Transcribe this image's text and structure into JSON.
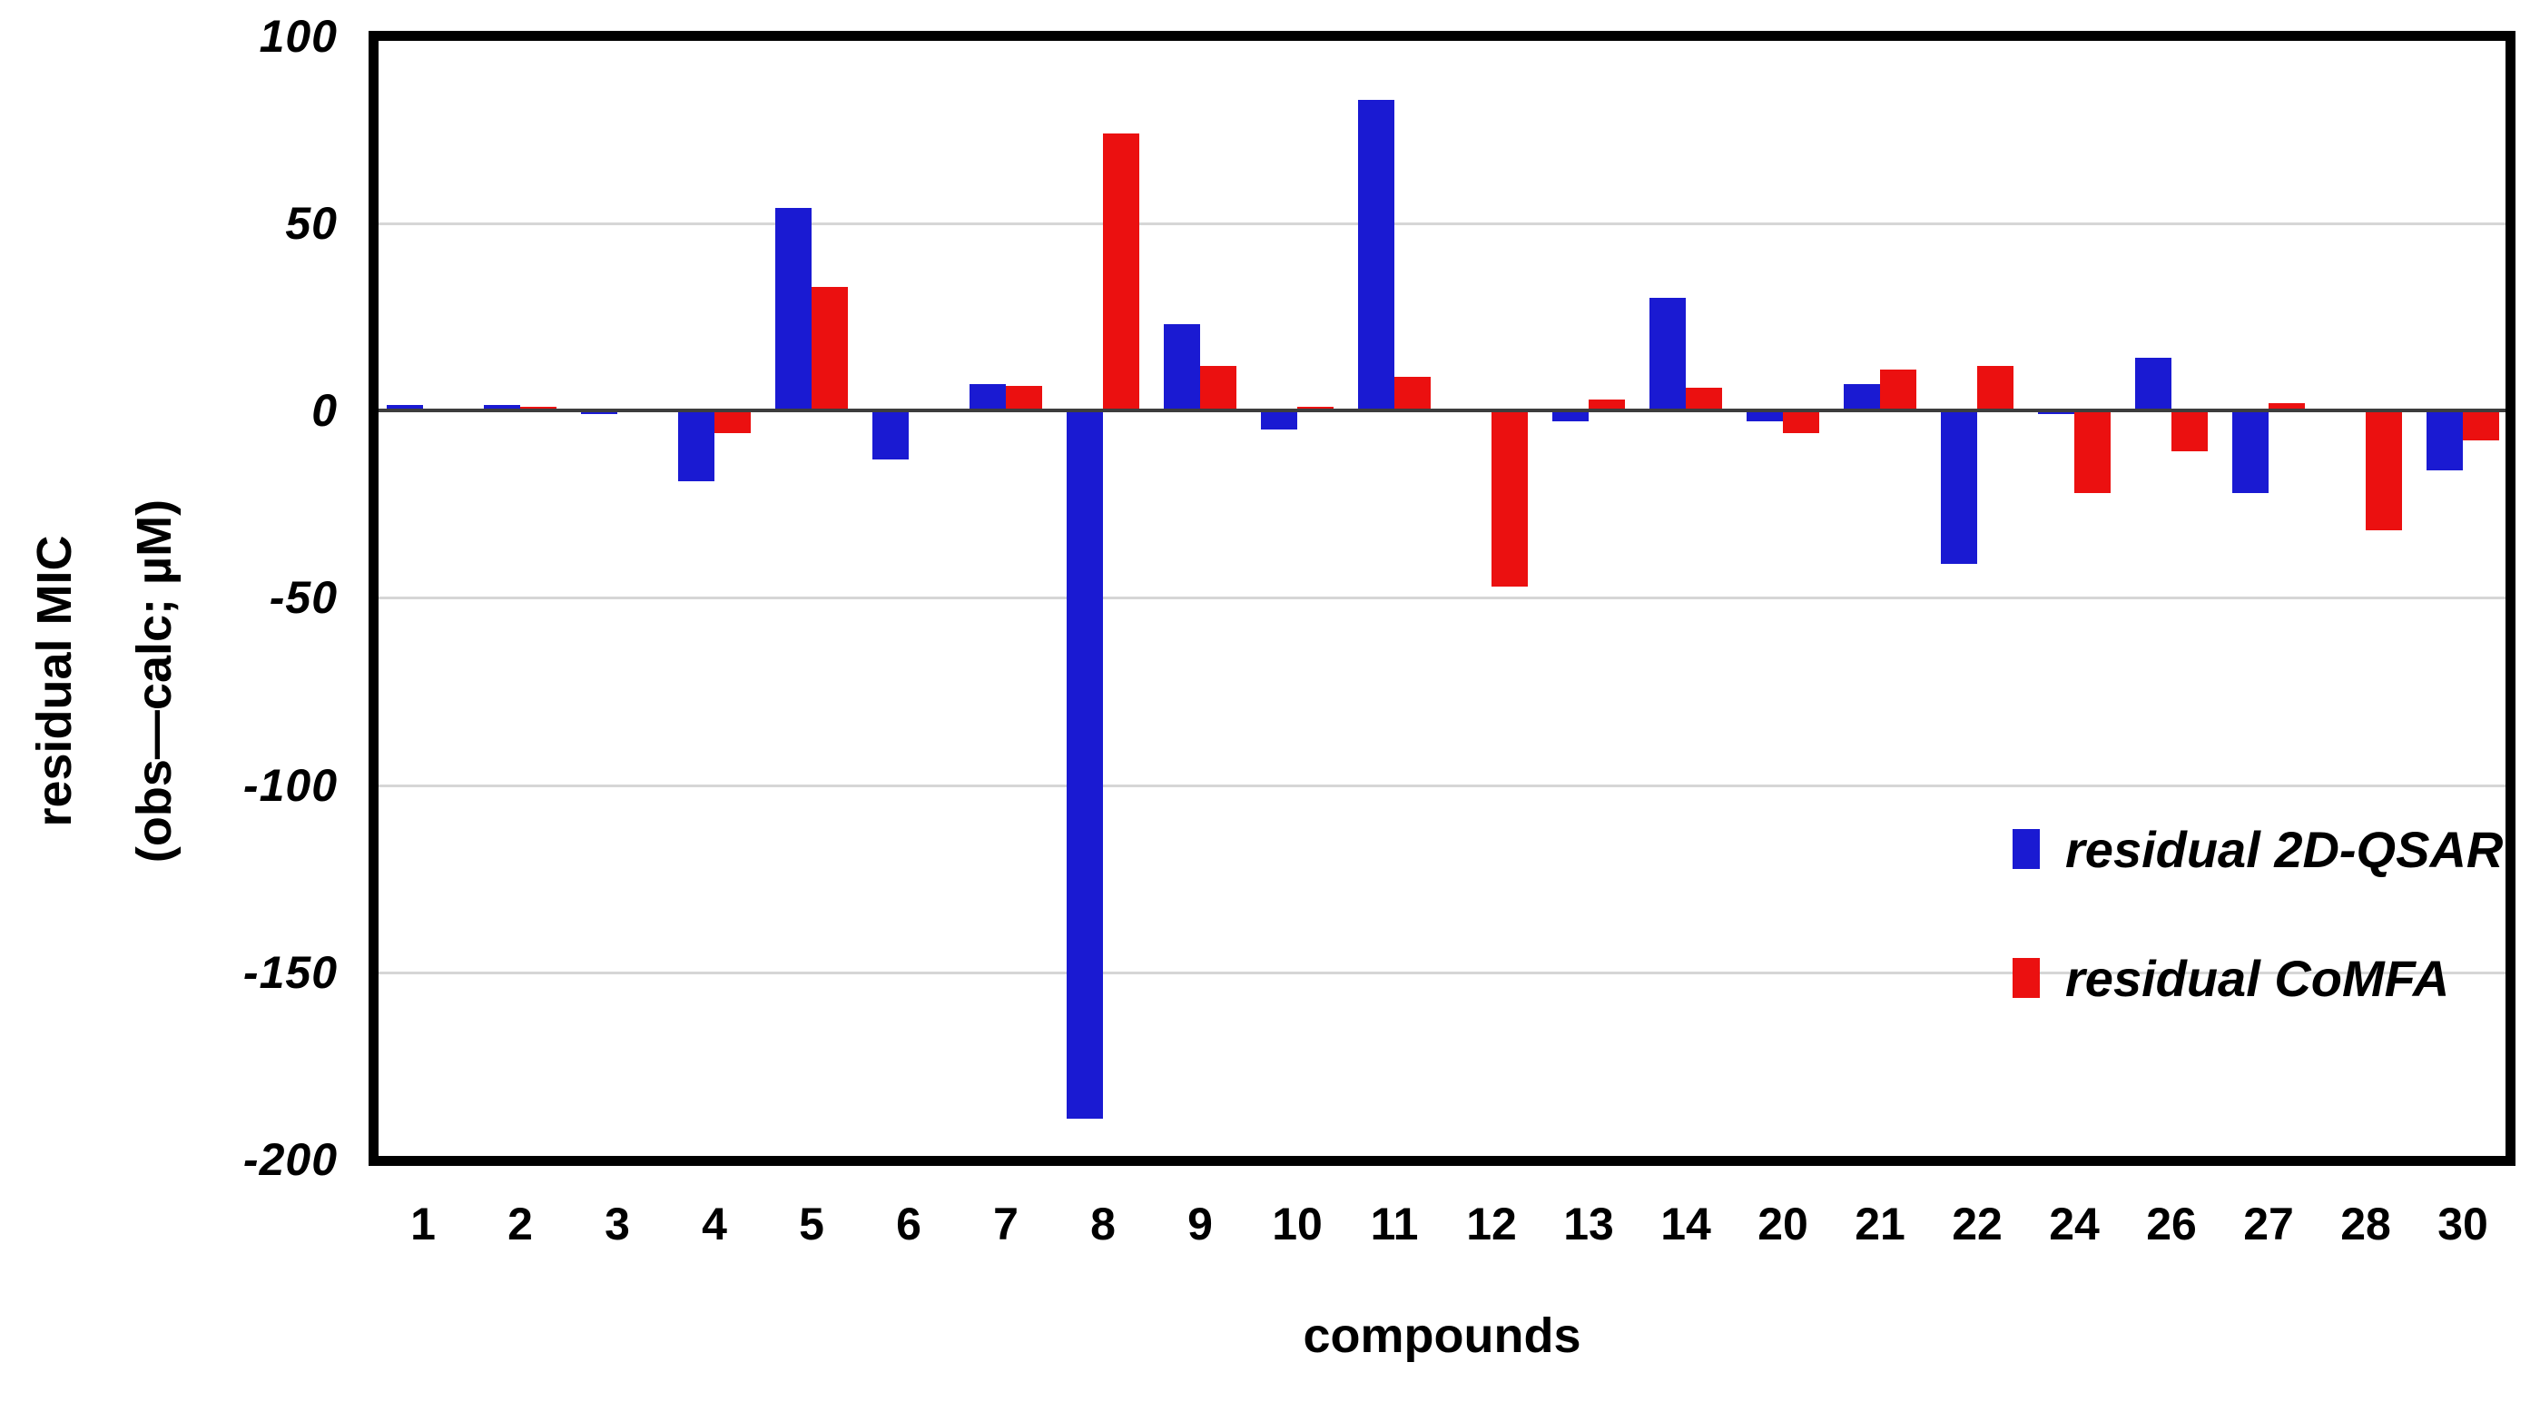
{
  "chart_data": {
    "type": "bar",
    "title": "",
    "xlabel": "compounds",
    "ylabel_line1": "residual MIC",
    "ylabel_line2": "(obs—calc; µM)",
    "categories": [
      "1",
      "2",
      "3",
      "4",
      "5",
      "6",
      "7",
      "8",
      "9",
      "10",
      "11",
      "12",
      "13",
      "14",
      "20",
      "21",
      "22",
      "24",
      "26",
      "27",
      "28",
      "30"
    ],
    "series": [
      {
        "name": "residual 2D-QSAR",
        "color": "#1a1ad2",
        "values": [
          1.5,
          1.5,
          -1,
          -19,
          54,
          -13,
          7,
          -189,
          23,
          -5,
          83,
          -0.5,
          -3,
          30,
          -3,
          7,
          -41,
          -1,
          14,
          -22,
          -0.5,
          -16
        ]
      },
      {
        "name": "residual CoMFA",
        "color": "#eb1010",
        "values": [
          0.5,
          1,
          -0.5,
          -6,
          33,
          -0.5,
          6.5,
          74,
          12,
          1,
          9,
          -47,
          3,
          6,
          -6,
          11,
          12,
          -22,
          -11,
          2,
          -32,
          -8
        ]
      }
    ],
    "y_ticks": [
      100,
      50,
      0,
      -50,
      -100,
      -150,
      -200
    ],
    "ylim": [
      -200,
      100
    ],
    "grid": true,
    "gridlines_at": [
      50,
      -50,
      -100,
      -150
    ],
    "legend_position": "inside-right",
    "zero_line": true
  },
  "legend": {
    "items": [
      {
        "label": "residual 2D-QSAR",
        "color": "#1a1ad2"
      },
      {
        "label": "residual CoMFA",
        "color": "#eb1010"
      }
    ]
  },
  "axes": {
    "x_title": "compounds",
    "y_title_line1": "residual MIC",
    "y_title_line2": "(obs—calc; µM)"
  }
}
